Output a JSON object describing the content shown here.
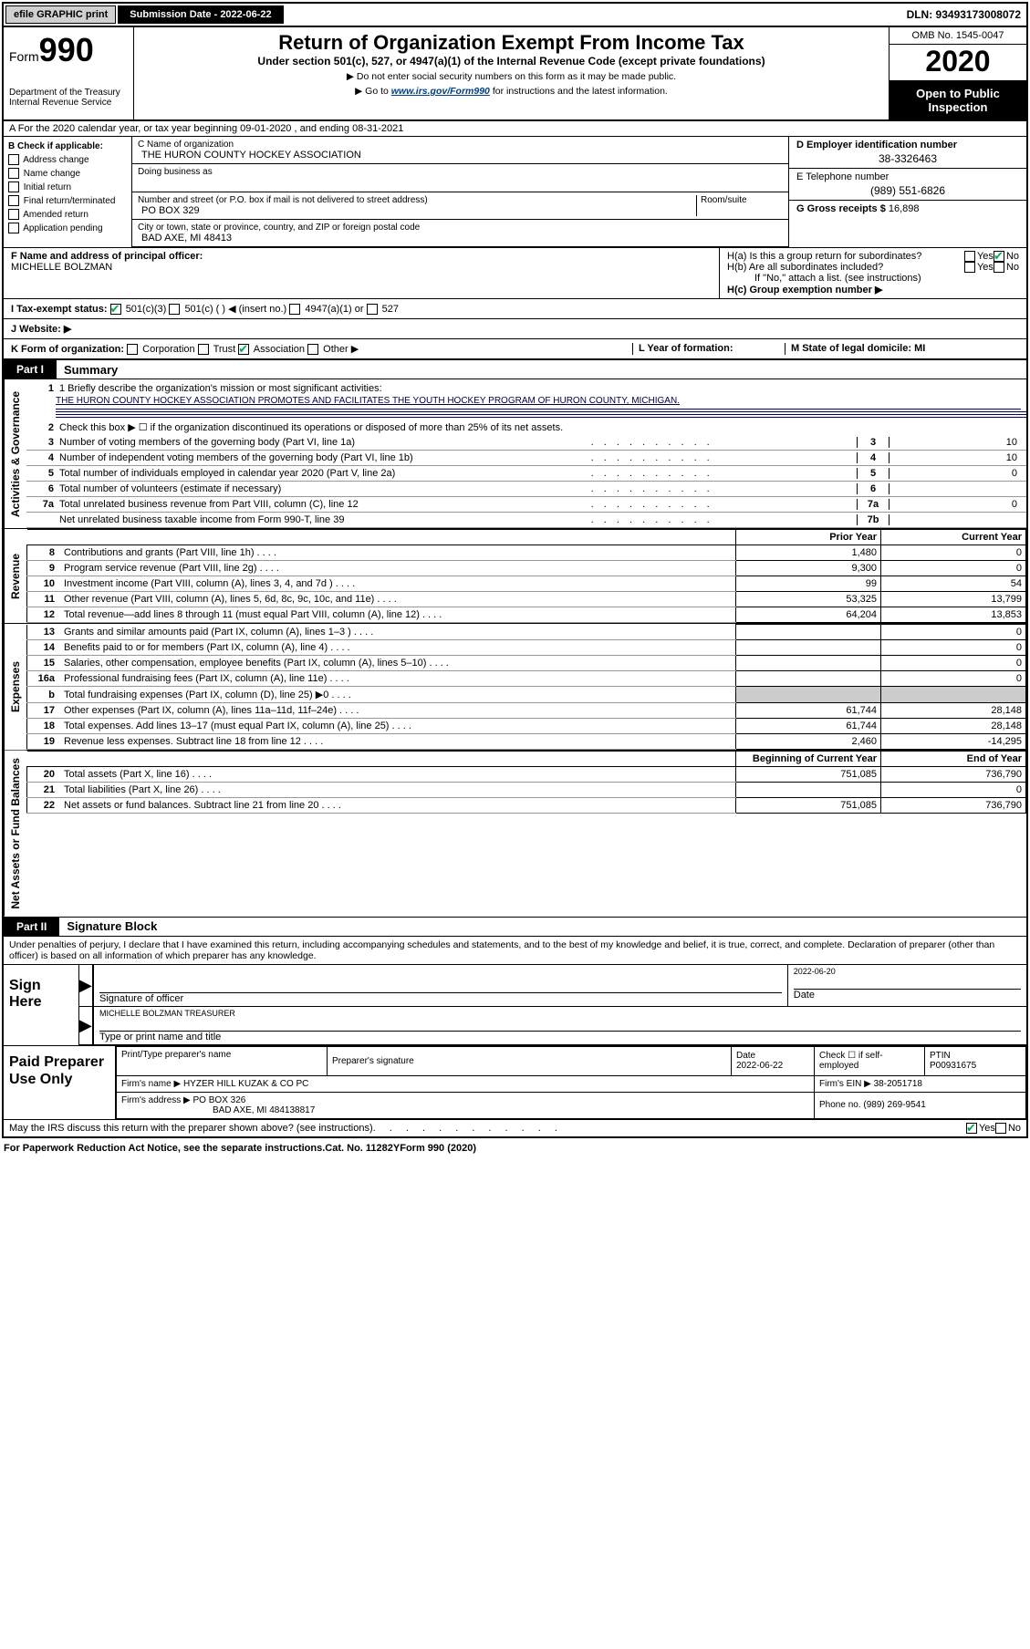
{
  "topbar": {
    "efile": "efile GRAPHIC print",
    "sub_label": "Submission Date - 2022-06-22",
    "dln": "DLN: 93493173008072"
  },
  "header": {
    "form_word": "Form",
    "form_num": "990",
    "dept": "Department of the Treasury\nInternal Revenue Service",
    "title": "Return of Organization Exempt From Income Tax",
    "subtitle": "Under section 501(c), 527, or 4947(a)(1) of the Internal Revenue Code (except private foundations)",
    "instr1": "▶ Do not enter social security numbers on this form as it may be made public.",
    "instr2_pre": "▶ Go to ",
    "instr2_link": "www.irs.gov/Form990",
    "instr2_post": " for instructions and the latest information.",
    "omb": "OMB No. 1545-0047",
    "year": "2020",
    "open1": "Open to Public",
    "open2": "Inspection"
  },
  "line_a": "A   For the 2020 calendar year, or tax year beginning 09-01-2020   , and ending 08-31-2021",
  "section_b": {
    "label": "B Check if applicable:",
    "items": [
      "Address change",
      "Name change",
      "Initial return",
      "Final return/terminated",
      "Amended return",
      "Application pending"
    ]
  },
  "section_c": {
    "label_name": "C Name of organization",
    "org_name": "THE HURON COUNTY HOCKEY ASSOCIATION",
    "dba_label": "Doing business as",
    "street_label": "Number and street (or P.O. box if mail is not delivered to street address)",
    "room_label": "Room/suite",
    "street_val": "PO BOX 329",
    "city_label": "City or town, state or province, country, and ZIP or foreign postal code",
    "city_val": "BAD AXE, MI  48413"
  },
  "section_d": {
    "ein_label": "D Employer identification number",
    "ein": "38-3326463",
    "tel_label": "E Telephone number",
    "tel": "(989) 551-6826",
    "gross_label": "G Gross receipts $ ",
    "gross_val": "16,898"
  },
  "section_f": {
    "label": "F  Name and address of principal officer:",
    "val": "MICHELLE BOLZMAN"
  },
  "section_h": {
    "ha": "H(a)  Is this a group return for subordinates?",
    "hb": "H(b)  Are all subordinates included?",
    "hb_note": "If \"No,\" attach a list. (see instructions)",
    "hc": "H(c)  Group exemption number ▶",
    "yes": "Yes",
    "no": "No"
  },
  "tax_status": {
    "label": "I   Tax-exempt status:",
    "opt1": "501(c)(3)",
    "opt2_pre": "501(c) ( ",
    "opt2_post": " ) ◀ (insert no.)",
    "opt3": "4947(a)(1) or",
    "opt4": "527"
  },
  "website_label": "J   Website: ▶",
  "k_row": {
    "label": "K Form of organization:",
    "opts": [
      "Corporation",
      "Trust",
      "Association",
      "Other ▶"
    ],
    "checked_idx": 2,
    "l_label": "L Year of formation:",
    "m_label": "M State of legal domicile: MI"
  },
  "part1": {
    "label": "Part I",
    "title": "Summary",
    "side1": "Activities & Governance",
    "line1_label": "1   Briefly describe the organization's mission or most significant activities:",
    "mission": "THE HURON COUNTY HOCKEY ASSOCIATION PROMOTES AND FACILITATES THE YOUTH HOCKEY PROGRAM OF HURON COUNTY, MICHIGAN.",
    "line2": "Check this box ▶ ☐  if the organization discontinued its operations or disposed of more than 25% of its net assets.",
    "rows_gov": [
      {
        "n": "3",
        "t": "Number of voting members of the governing body (Part VI, line 1a)",
        "b": "3",
        "v": "10"
      },
      {
        "n": "4",
        "t": "Number of independent voting members of the governing body (Part VI, line 1b)",
        "b": "4",
        "v": "10"
      },
      {
        "n": "5",
        "t": "Total number of individuals employed in calendar year 2020 (Part V, line 2a)",
        "b": "5",
        "v": "0"
      },
      {
        "n": "6",
        "t": "Total number of volunteers (estimate if necessary)",
        "b": "6",
        "v": ""
      },
      {
        "n": "7a",
        "t": "Total unrelated business revenue from Part VIII, column (C), line 12",
        "b": "7a",
        "v": "0"
      },
      {
        "n": "",
        "t": "Net unrelated business taxable income from Form 990-T, line 39",
        "b": "7b",
        "v": ""
      }
    ],
    "side2": "Revenue",
    "hdr_prior": "Prior Year",
    "hdr_curr": "Current Year",
    "rows_rev": [
      {
        "n": "8",
        "t": "Contributions and grants (Part VIII, line 1h)",
        "p": "1,480",
        "c": "0"
      },
      {
        "n": "9",
        "t": "Program service revenue (Part VIII, line 2g)",
        "p": "9,300",
        "c": "0"
      },
      {
        "n": "10",
        "t": "Investment income (Part VIII, column (A), lines 3, 4, and 7d )",
        "p": "99",
        "c": "54"
      },
      {
        "n": "11",
        "t": "Other revenue (Part VIII, column (A), lines 5, 6d, 8c, 9c, 10c, and 11e)",
        "p": "53,325",
        "c": "13,799"
      },
      {
        "n": "12",
        "t": "Total revenue—add lines 8 through 11 (must equal Part VIII, column (A), line 12)",
        "p": "64,204",
        "c": "13,853"
      }
    ],
    "side3": "Expenses",
    "rows_exp": [
      {
        "n": "13",
        "t": "Grants and similar amounts paid (Part IX, column (A), lines 1–3 )",
        "p": "",
        "c": "0"
      },
      {
        "n": "14",
        "t": "Benefits paid to or for members (Part IX, column (A), line 4)",
        "p": "",
        "c": "0"
      },
      {
        "n": "15",
        "t": "Salaries, other compensation, employee benefits (Part IX, column (A), lines 5–10)",
        "p": "",
        "c": "0"
      },
      {
        "n": "16a",
        "t": "Professional fundraising fees (Part IX, column (A), line 11e)",
        "p": "",
        "c": "0"
      },
      {
        "n": "b",
        "t": "Total fundraising expenses (Part IX, column (D), line 25) ▶0",
        "p": "—greyed—",
        "c": "—greyed—"
      },
      {
        "n": "17",
        "t": "Other expenses (Part IX, column (A), lines 11a–11d, 11f–24e)",
        "p": "61,744",
        "c": "28,148"
      },
      {
        "n": "18",
        "t": "Total expenses. Add lines 13–17 (must equal Part IX, column (A), line 25)",
        "p": "61,744",
        "c": "28,148"
      },
      {
        "n": "19",
        "t": "Revenue less expenses. Subtract line 18 from line 12",
        "p": "2,460",
        "c": "-14,295"
      }
    ],
    "side4": "Net Assets or Fund Balances",
    "hdr_beg": "Beginning of Current Year",
    "hdr_end": "End of Year",
    "rows_net": [
      {
        "n": "20",
        "t": "Total assets (Part X, line 16)",
        "p": "751,085",
        "c": "736,790"
      },
      {
        "n": "21",
        "t": "Total liabilities (Part X, line 26)",
        "p": "",
        "c": "0"
      },
      {
        "n": "22",
        "t": "Net assets or fund balances. Subtract line 21 from line 20",
        "p": "751,085",
        "c": "736,790"
      }
    ]
  },
  "part2": {
    "label": "Part II",
    "title": "Signature Block",
    "perjury": "Under penalties of perjury, I declare that I have examined this return, including accompanying schedules and statements, and to the best of my knowledge and belief, it is true, correct, and complete. Declaration of preparer (other than officer) is based on all information of which preparer has any knowledge.",
    "sign_here": "Sign Here",
    "sig_label": "Signature of officer",
    "date_label": "Date",
    "sig_date": "2022-06-20",
    "name_title": "MICHELLE BOLZMAN TREASURER",
    "name_title_label": "Type or print name and title",
    "paid_label": "Paid Preparer Use Only",
    "prep_name_label": "Print/Type preparer's name",
    "prep_sig_label": "Preparer's signature",
    "prep_date_label": "Date",
    "prep_date": "2022-06-22",
    "check_self": "Check ☐ if self-employed",
    "ptin_label": "PTIN",
    "ptin": "P00931675",
    "firm_name_label": "Firm's name     ▶",
    "firm_name": "HYZER HILL KUZAK & CO PC",
    "firm_ein_label": "Firm's EIN ▶",
    "firm_ein": "38-2051718",
    "firm_addr_label": "Firm's address ▶",
    "firm_addr1": "PO BOX 326",
    "firm_addr2": "BAD AXE, MI  484138817",
    "firm_phone_label": "Phone no.",
    "firm_phone": "(989) 269-9541",
    "discuss": "May the IRS discuss this return with the preparer shown above? (see instructions)",
    "yes": "Yes",
    "no": "No"
  },
  "footer": {
    "paperwork": "For Paperwork Reduction Act Notice, see the separate instructions.",
    "catno": "Cat. No. 11282Y",
    "formno": "Form 990 (2020)"
  }
}
